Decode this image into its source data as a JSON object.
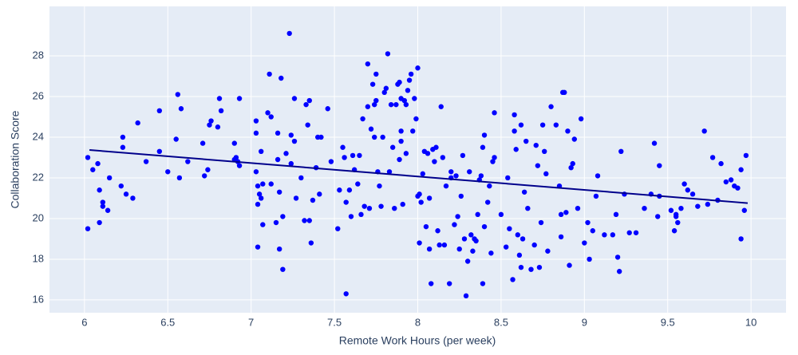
{
  "chart_data": {
    "type": "scatter",
    "x_label": "Remote Work Hours (per week)",
    "y_label": "Collaboration Score",
    "xlim": [
      5.79,
      10.21
    ],
    "ylim": [
      15.37,
      30.43
    ],
    "xticks": [
      6,
      6.5,
      7,
      7.5,
      8,
      8.5,
      9,
      9.5,
      10
    ],
    "yticks": [
      16,
      18,
      20,
      22,
      24,
      26,
      28
    ],
    "grid": true,
    "color": "#0000ff",
    "x": [
      6.02,
      6.02,
      6.05,
      6.08,
      6.09,
      6.09,
      6.11,
      6.11,
      6.14,
      6.15,
      6.22,
      6.23,
      6.23,
      6.25,
      6.29,
      6.32,
      6.37,
      6.45,
      6.45,
      6.5,
      6.55,
      6.56,
      6.57,
      6.58,
      6.62,
      6.71,
      6.72,
      6.74,
      6.75,
      6.76,
      6.8,
      6.81,
      6.82,
      6.9,
      6.9,
      6.91,
      6.92,
      6.93,
      6.93,
      7.03,
      7.03,
      7.03,
      7.04,
      7.04,
      7.04,
      7.05,
      7.06,
      7.06,
      7.07,
      7.07,
      7.1,
      7.11,
      7.12,
      7.12,
      7.15,
      7.16,
      7.16,
      7.17,
      7.17,
      7.18,
      7.19,
      7.19,
      7.21,
      7.23,
      7.24,
      7.24,
      7.26,
      7.26,
      7.27,
      7.3,
      7.32,
      7.33,
      7.34,
      7.35,
      7.35,
      7.36,
      7.37,
      7.39,
      7.4,
      7.41,
      7.42,
      7.46,
      7.48,
      7.52,
      7.53,
      7.55,
      7.56,
      7.57,
      7.57,
      7.59,
      7.6,
      7.61,
      7.62,
      7.64,
      7.65,
      7.66,
      7.67,
      7.68,
      7.7,
      7.7,
      7.71,
      7.72,
      7.73,
      7.74,
      7.74,
      7.75,
      7.75,
      7.76,
      7.77,
      7.78,
      7.79,
      7.8,
      7.81,
      7.82,
      7.83,
      7.84,
      7.85,
      7.86,
      7.87,
      7.88,
      7.89,
      7.89,
      7.9,
      7.9,
      7.9,
      7.91,
      7.92,
      7.93,
      7.93,
      7.94,
      7.95,
      7.96,
      7.97,
      7.98,
      7.99,
      8.0,
      8.0,
      8.01,
      8.01,
      8.02,
      8.03,
      8.04,
      8.05,
      8.06,
      8.07,
      8.07,
      8.08,
      8.09,
      8.1,
      8.11,
      8.12,
      8.13,
      8.14,
      8.15,
      8.16,
      8.17,
      8.19,
      8.2,
      8.2,
      8.22,
      8.23,
      8.24,
      8.25,
      8.26,
      8.27,
      8.28,
      8.29,
      8.3,
      8.31,
      8.32,
      8.33,
      8.34,
      8.35,
      8.36,
      8.37,
      8.38,
      8.39,
      8.39,
      8.4,
      8.4,
      8.42,
      8.43,
      8.44,
      8.45,
      8.46,
      8.46,
      8.5,
      8.53,
      8.54,
      8.55,
      8.57,
      8.58,
      8.58,
      8.59,
      8.6,
      8.61,
      8.62,
      8.62,
      8.63,
      8.64,
      8.65,
      8.66,
      8.68,
      8.7,
      8.71,
      8.72,
      8.73,
      8.74,
      8.75,
      8.76,
      8.77,
      8.78,
      8.8,
      8.83,
      8.85,
      8.86,
      8.86,
      8.87,
      8.88,
      8.89,
      8.9,
      8.91,
      8.92,
      8.93,
      8.94,
      8.96,
      8.98,
      9.0,
      9.02,
      9.03,
      9.05,
      9.07,
      9.08,
      9.12,
      9.17,
      9.19,
      9.2,
      9.21,
      9.22,
      9.24,
      9.27,
      9.31,
      9.36,
      9.4,
      9.42,
      9.44,
      9.45,
      9.45,
      9.52,
      9.54,
      9.55,
      9.55,
      9.56,
      9.58,
      9.6,
      9.62,
      9.65,
      9.68,
      9.72,
      9.74,
      9.77,
      9.8,
      9.82,
      9.85,
      9.88,
      9.9,
      9.92,
      9.94,
      9.94,
      9.96,
      9.97
    ],
    "values": [
      23.0,
      19.5,
      22.4,
      22.7,
      21.4,
      19.8,
      20.8,
      20.6,
      20.4,
      22.0,
      21.6,
      24.0,
      23.5,
      21.2,
      21.0,
      24.7,
      22.8,
      23.3,
      25.3,
      22.3,
      23.9,
      26.1,
      22.0,
      25.4,
      22.8,
      23.7,
      22.1,
      22.4,
      24.6,
      24.8,
      24.5,
      25.9,
      25.3,
      23.7,
      22.9,
      23.0,
      22.8,
      25.9,
      22.6,
      24.8,
      22.3,
      24.2,
      21.6,
      20.7,
      18.6,
      21.2,
      21.0,
      23.3,
      19.7,
      21.7,
      25.2,
      27.1,
      25.0,
      21.7,
      19.8,
      24.2,
      22.9,
      18.5,
      21.3,
      26.9,
      20.1,
      17.5,
      23.2,
      29.1,
      22.7,
      24.1,
      23.8,
      25.9,
      21.0,
      22.0,
      19.9,
      25.6,
      24.6,
      25.8,
      19.9,
      18.8,
      20.9,
      22.5,
      24.0,
      21.2,
      24.0,
      25.4,
      22.8,
      19.5,
      21.4,
      23.5,
      23.0,
      20.8,
      16.3,
      21.4,
      20.1,
      23.1,
      22.4,
      21.7,
      23.1,
      20.2,
      24.9,
      20.6,
      25.5,
      27.6,
      20.5,
      24.4,
      26.6,
      25.6,
      24.0,
      27.1,
      25.8,
      22.3,
      21.6,
      20.6,
      24.0,
      26.2,
      26.4,
      28.1,
      22.3,
      25.6,
      23.5,
      20.5,
      25.6,
      26.6,
      26.7,
      22.9,
      23.8,
      24.3,
      25.9,
      20.7,
      25.8,
      25.6,
      23.2,
      26.3,
      26.8,
      27.1,
      24.3,
      25.9,
      24.9,
      27.4,
      21.1,
      21.2,
      18.8,
      20.8,
      22.2,
      23.3,
      19.6,
      23.2,
      21.0,
      18.5,
      16.8,
      23.4,
      22.8,
      23.5,
      19.4,
      18.7,
      25.5,
      23.0,
      18.7,
      21.6,
      16.8,
      22.0,
      22.3,
      19.7,
      22.1,
      20.1,
      18.5,
      21.1,
      23.1,
      19.0,
      16.2,
      17.9,
      22.3,
      19.2,
      18.4,
      19.0,
      18.9,
      20.2,
      21.9,
      22.1,
      23.5,
      16.8,
      24.1,
      19.6,
      20.8,
      21.6,
      18.3,
      22.8,
      25.2,
      23.0,
      20.2,
      18.6,
      22.0,
      19.5,
      17.0,
      25.1,
      24.3,
      23.4,
      19.2,
      18.2,
      24.6,
      17.6,
      19.0,
      21.3,
      23.8,
      20.5,
      17.5,
      18.7,
      23.6,
      22.6,
      17.6,
      19.8,
      24.6,
      23.3,
      22.2,
      18.4,
      25.5,
      24.6,
      21.6,
      20.2,
      19.1,
      26.2,
      26.2,
      20.3,
      24.3,
      17.7,
      22.5,
      22.7,
      23.9,
      20.5,
      24.9,
      18.8,
      19.8,
      18.0,
      19.4,
      21.1,
      22.1,
      19.2,
      19.2,
      20.2,
      18.1,
      17.4,
      23.3,
      21.2,
      19.3,
      19.3,
      20.5,
      21.2,
      23.7,
      20.1,
      22.6,
      21.1,
      20.4,
      19.4,
      20.1,
      20.2,
      19.8,
      20.5,
      21.7,
      21.4,
      21.2,
      20.6,
      24.3,
      20.7,
      23.0,
      20.9,
      22.7,
      21.8,
      21.9,
      21.6,
      21.5,
      19.0,
      22.4,
      20.4,
      23.1
    ],
    "trendline": {
      "color": "#00008b",
      "x": [
        6.03,
        9.98
      ],
      "values": [
        23.37,
        20.76
      ]
    }
  }
}
